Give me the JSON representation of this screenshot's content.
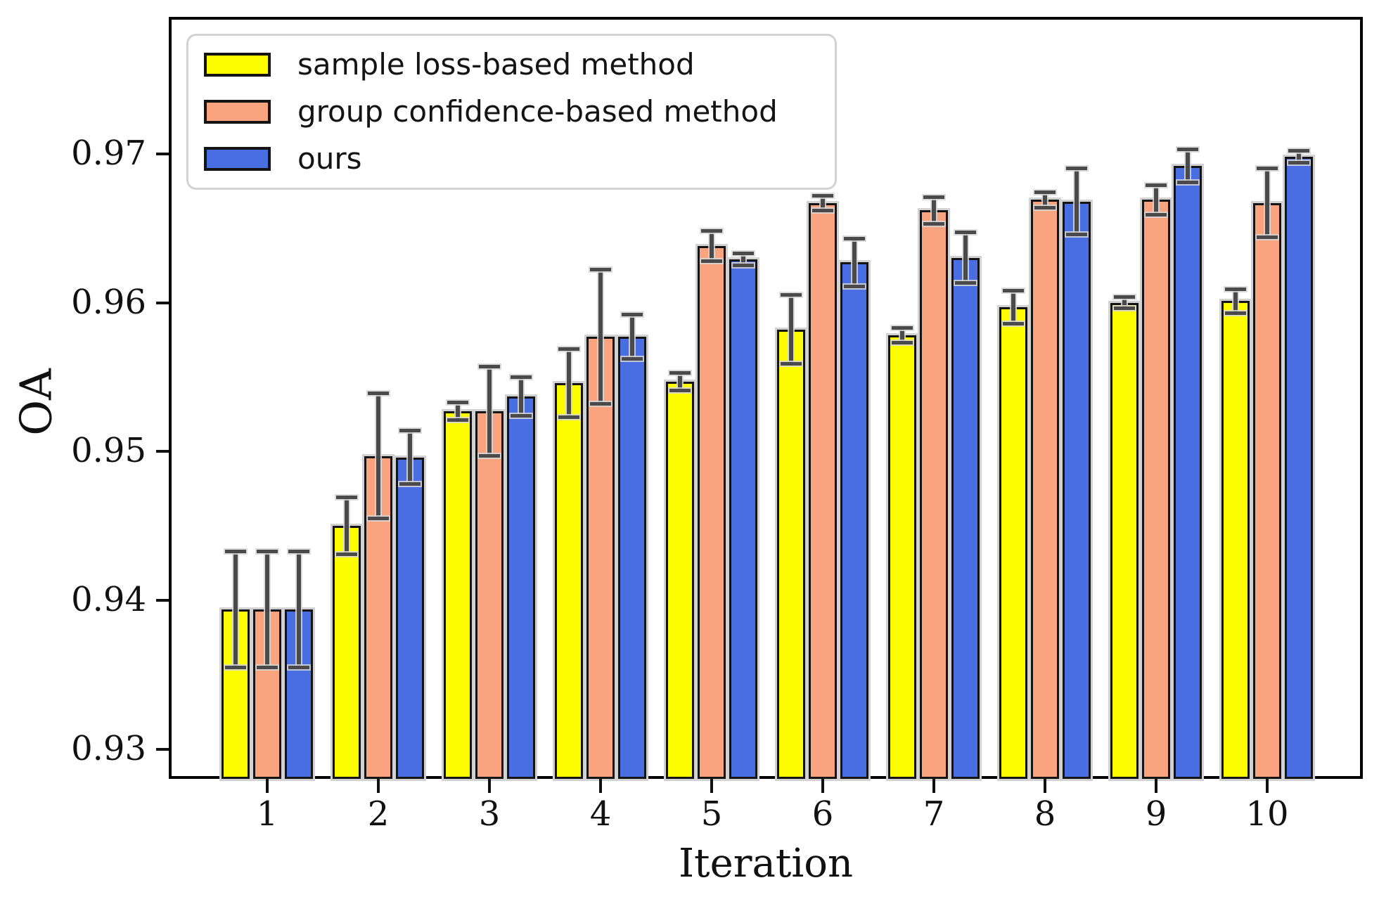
{
  "chart_data": {
    "type": "bar",
    "title": "",
    "xlabel": "Iteration",
    "ylabel": "OA",
    "categories": [
      "1",
      "2",
      "3",
      "4",
      "5",
      "6",
      "7",
      "8",
      "9",
      "10"
    ],
    "yticks": [
      {
        "value": 0.93,
        "label": "0.93"
      },
      {
        "value": 0.94,
        "label": "0.94"
      },
      {
        "value": 0.95,
        "label": "0.95"
      },
      {
        "value": 0.96,
        "label": "0.96"
      },
      {
        "value": 0.97,
        "label": "0.97"
      }
    ],
    "ylim": [
      0.928,
      0.9792
    ],
    "grid": false,
    "legend_position": "upper left",
    "bar_edge_color": "#141414",
    "error_bar_color": "#4a4a4a",
    "series": [
      {
        "name": "sample loss-based method",
        "color": "#fdfd00",
        "values": [
          0.9394,
          0.945,
          0.9527,
          0.9546,
          0.9547,
          0.9582,
          0.9578,
          0.9597,
          0.96,
          0.9601
        ],
        "errors": [
          0.0039,
          0.0019,
          0.0006,
          0.0023,
          0.0006,
          0.0023,
          0.0005,
          0.0011,
          0.0004,
          0.0008
        ]
      },
      {
        "name": "group confidence-based method",
        "color": "#f9a47e",
        "values": [
          0.9394,
          0.9497,
          0.9527,
          0.9577,
          0.9638,
          0.9667,
          0.9662,
          0.9669,
          0.9669,
          0.9667
        ],
        "errors": [
          0.0039,
          0.0042,
          0.003,
          0.0045,
          0.001,
          0.0005,
          0.0009,
          0.0005,
          0.001,
          0.0023
        ]
      },
      {
        "name": "ours",
        "color": "#486ee2",
        "values": [
          0.9394,
          0.9496,
          0.9537,
          0.9577,
          0.9629,
          0.9627,
          0.963,
          0.9668,
          0.9692,
          0.9698
        ],
        "errors": [
          0.0039,
          0.0018,
          0.0013,
          0.0015,
          0.0004,
          0.0016,
          0.0017,
          0.0022,
          0.0011,
          0.0004
        ]
      }
    ]
  }
}
